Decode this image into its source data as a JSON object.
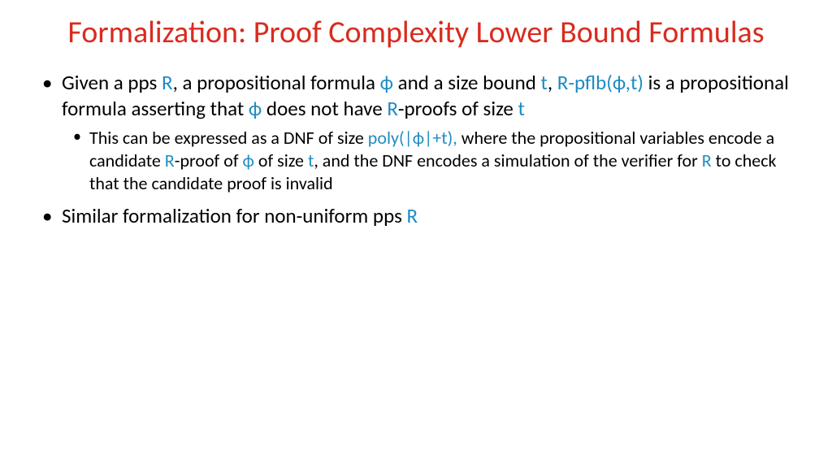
{
  "title": "Formalization: Proof Complexity Lower Bound Formulas",
  "colors": {
    "title": "#d92b1f",
    "highlight": "#1e8bc3",
    "body": "#000000",
    "background": "#ffffff"
  },
  "typography": {
    "title_fontsize": 38,
    "body_fontsize": 25,
    "sub_fontsize": 22,
    "font_family": "Calibri"
  },
  "b1": {
    "t1": "Given a pps ",
    "t2": "R",
    "t3": ", a propositional formula ",
    "t4": "ϕ",
    "t5": " and a size bound ",
    "t6": "t",
    "t7": ", ",
    "t8": "R-pflb(ϕ,t)",
    "t9": " is a propositional formula asserting that ",
    "t10": "ϕ",
    "t11": " does not have ",
    "t12": "R",
    "t13": "-proofs of size ",
    "t14": "t"
  },
  "b1s1": {
    "t1": "This can be expressed as a DNF of size ",
    "t2": "poly(|ϕ|+t),",
    "t3": " where the propositional variables encode a candidate ",
    "t4": "R",
    "t5": "-proof of ",
    "t6": "ϕ",
    "t7": " of size ",
    "t8": "t",
    "t9": ", and the DNF encodes a simulation of the verifier for ",
    "t10": "R",
    "t11": " to check that the candidate proof is invalid"
  },
  "b2": {
    "t1": "Similar formalization for non-uniform pps ",
    "t2": "R"
  }
}
